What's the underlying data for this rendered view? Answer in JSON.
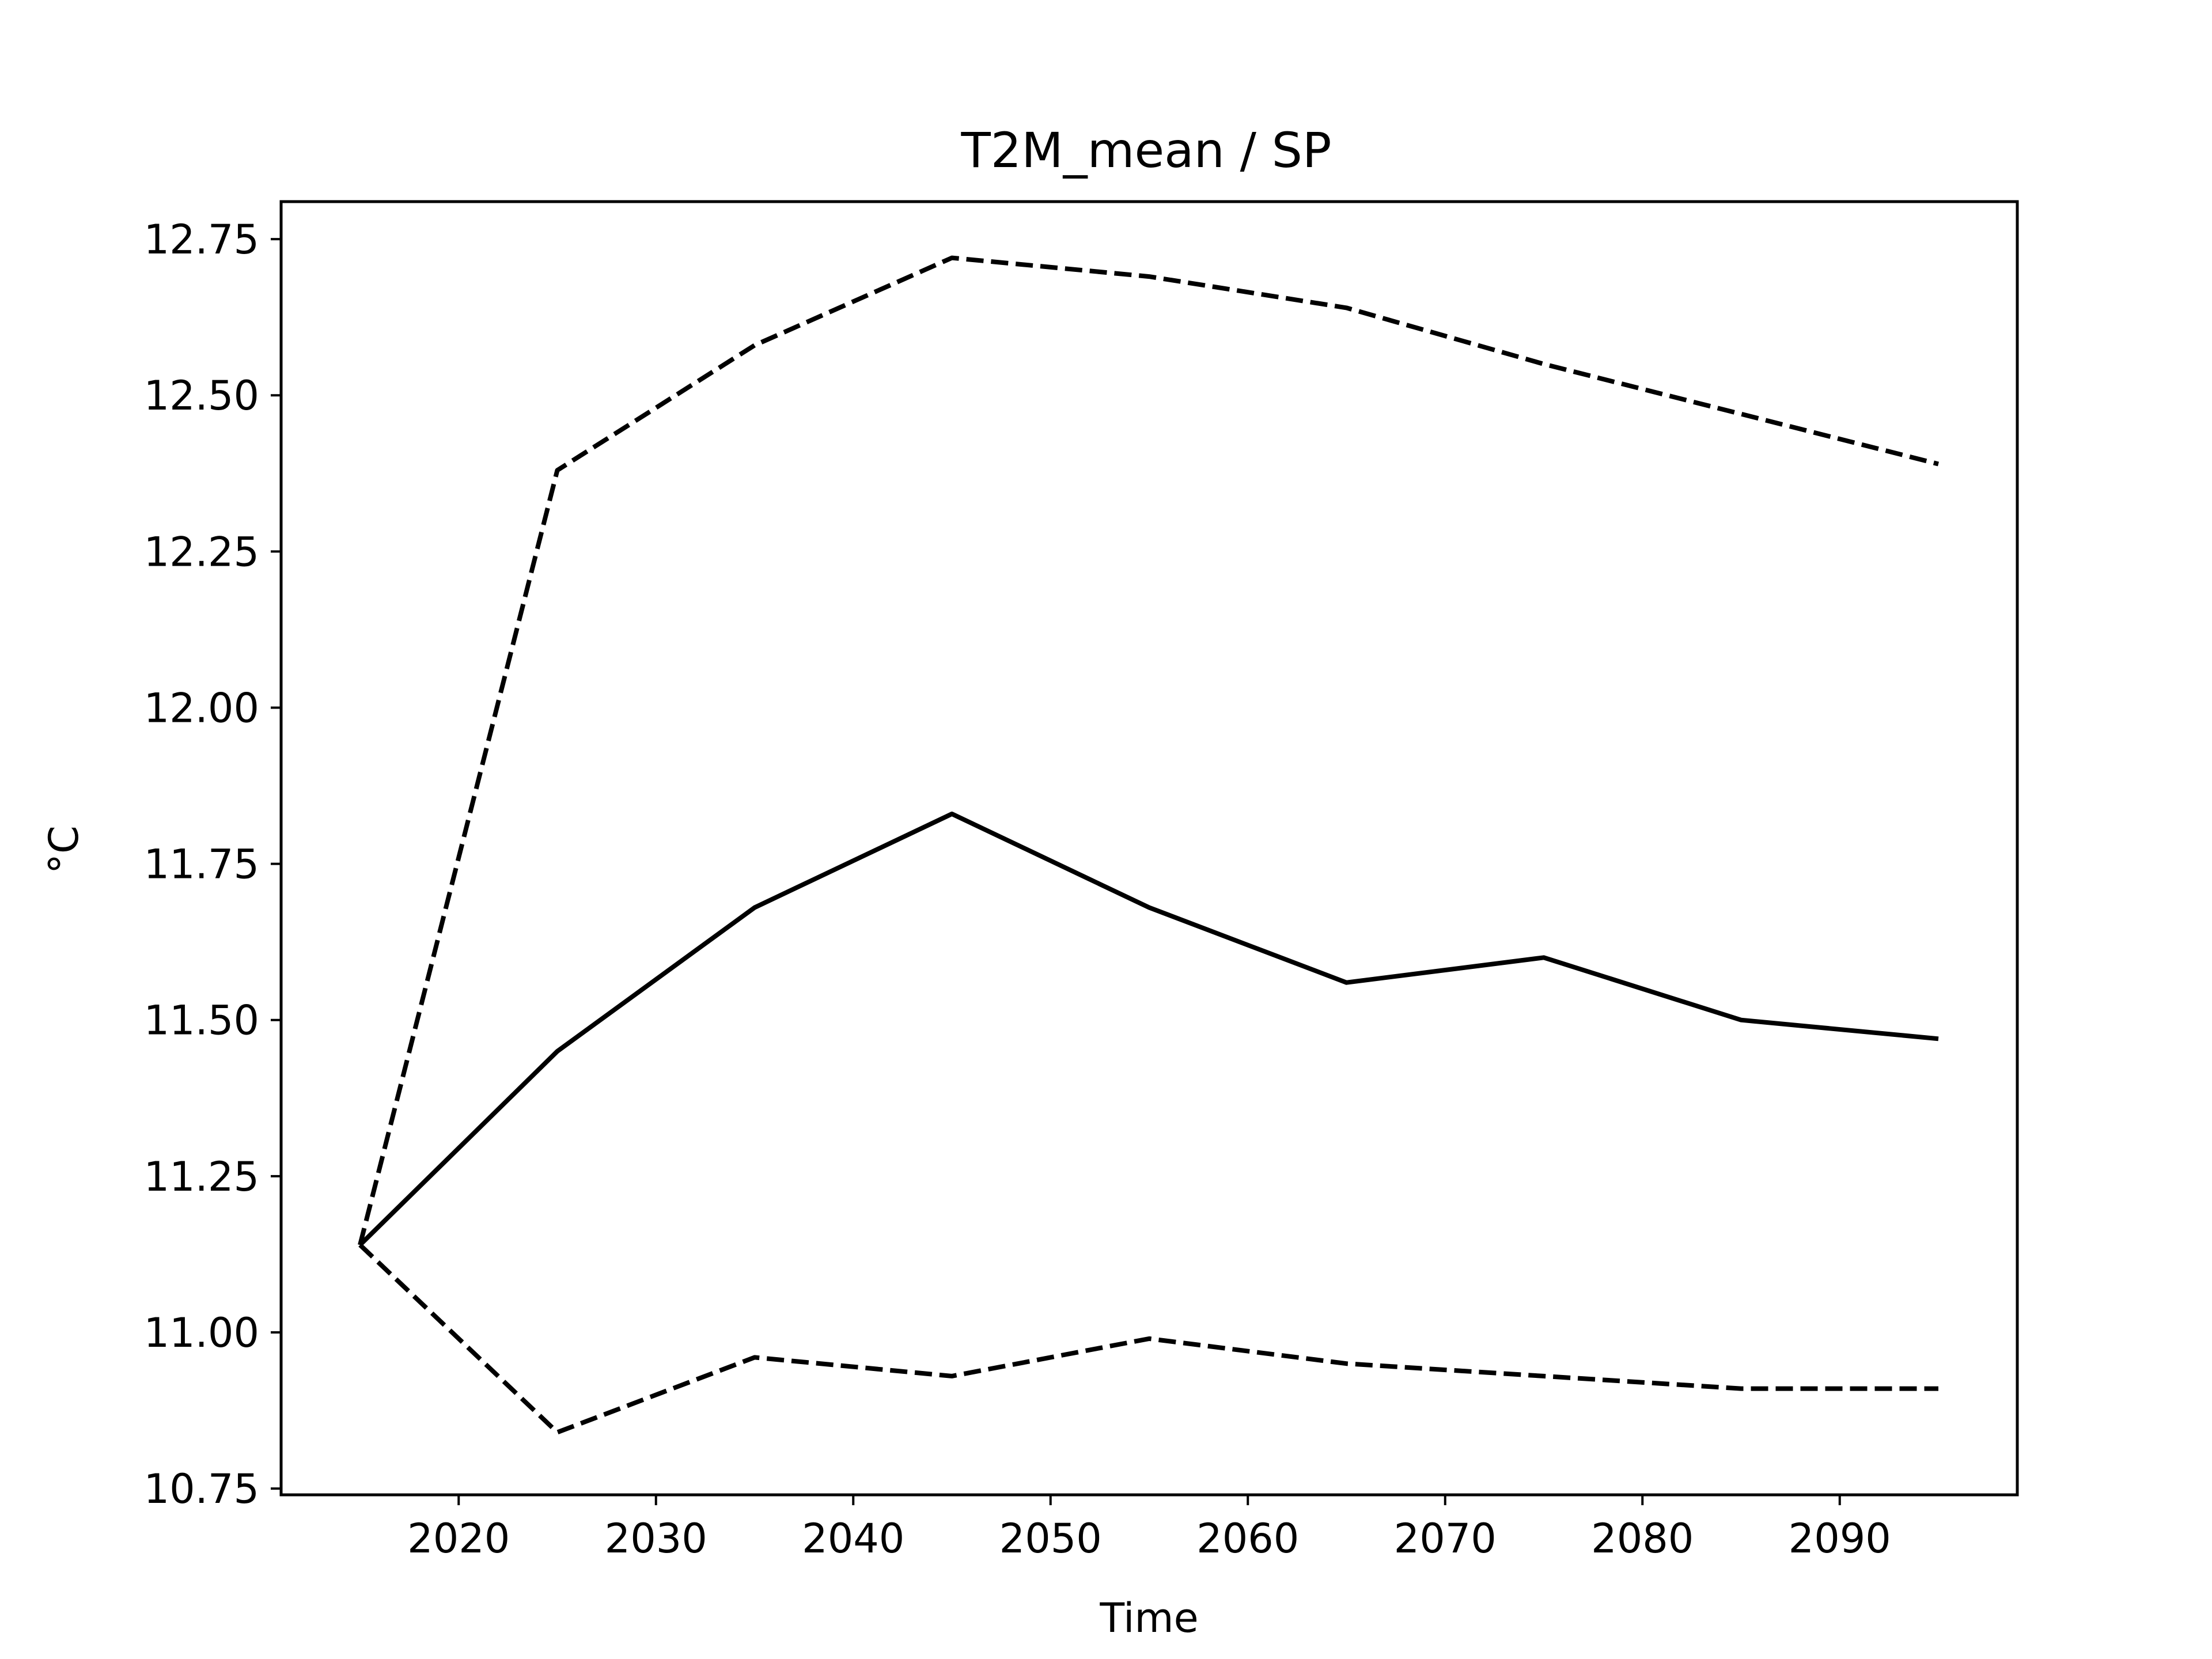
{
  "chart_data": {
    "type": "line",
    "title": "T2M_mean / SP",
    "xlabel": "Time",
    "ylabel": "°C",
    "xlim": [
      2011,
      2099
    ],
    "ylim": [
      10.74,
      12.81
    ],
    "xticks": [
      2020,
      2030,
      2040,
      2050,
      2060,
      2070,
      2080,
      2090
    ],
    "yticks": [
      10.75,
      11.0,
      11.25,
      11.5,
      11.75,
      12.0,
      12.25,
      12.5,
      12.75
    ],
    "ytick_labels": [
      "10.75",
      "11.00",
      "11.25",
      "11.50",
      "11.75",
      "12.00",
      "12.25",
      "12.50",
      "12.75"
    ],
    "grid": false,
    "line_color": "#000000",
    "x": [
      2015,
      2025,
      2035,
      2045,
      2055,
      2065,
      2075,
      2085,
      2095
    ],
    "series": [
      {
        "style": "dashed",
        "values": [
          11.14,
          12.38,
          12.58,
          12.72,
          12.69,
          12.64,
          12.55,
          12.47,
          12.39
        ]
      },
      {
        "style": "solid",
        "values": [
          11.14,
          11.45,
          11.68,
          11.83,
          11.68,
          11.56,
          11.6,
          11.5,
          11.47
        ]
      },
      {
        "style": "dashed",
        "values": [
          11.14,
          10.84,
          10.96,
          10.93,
          10.99,
          10.95,
          10.93,
          10.91,
          10.91
        ]
      }
    ]
  }
}
